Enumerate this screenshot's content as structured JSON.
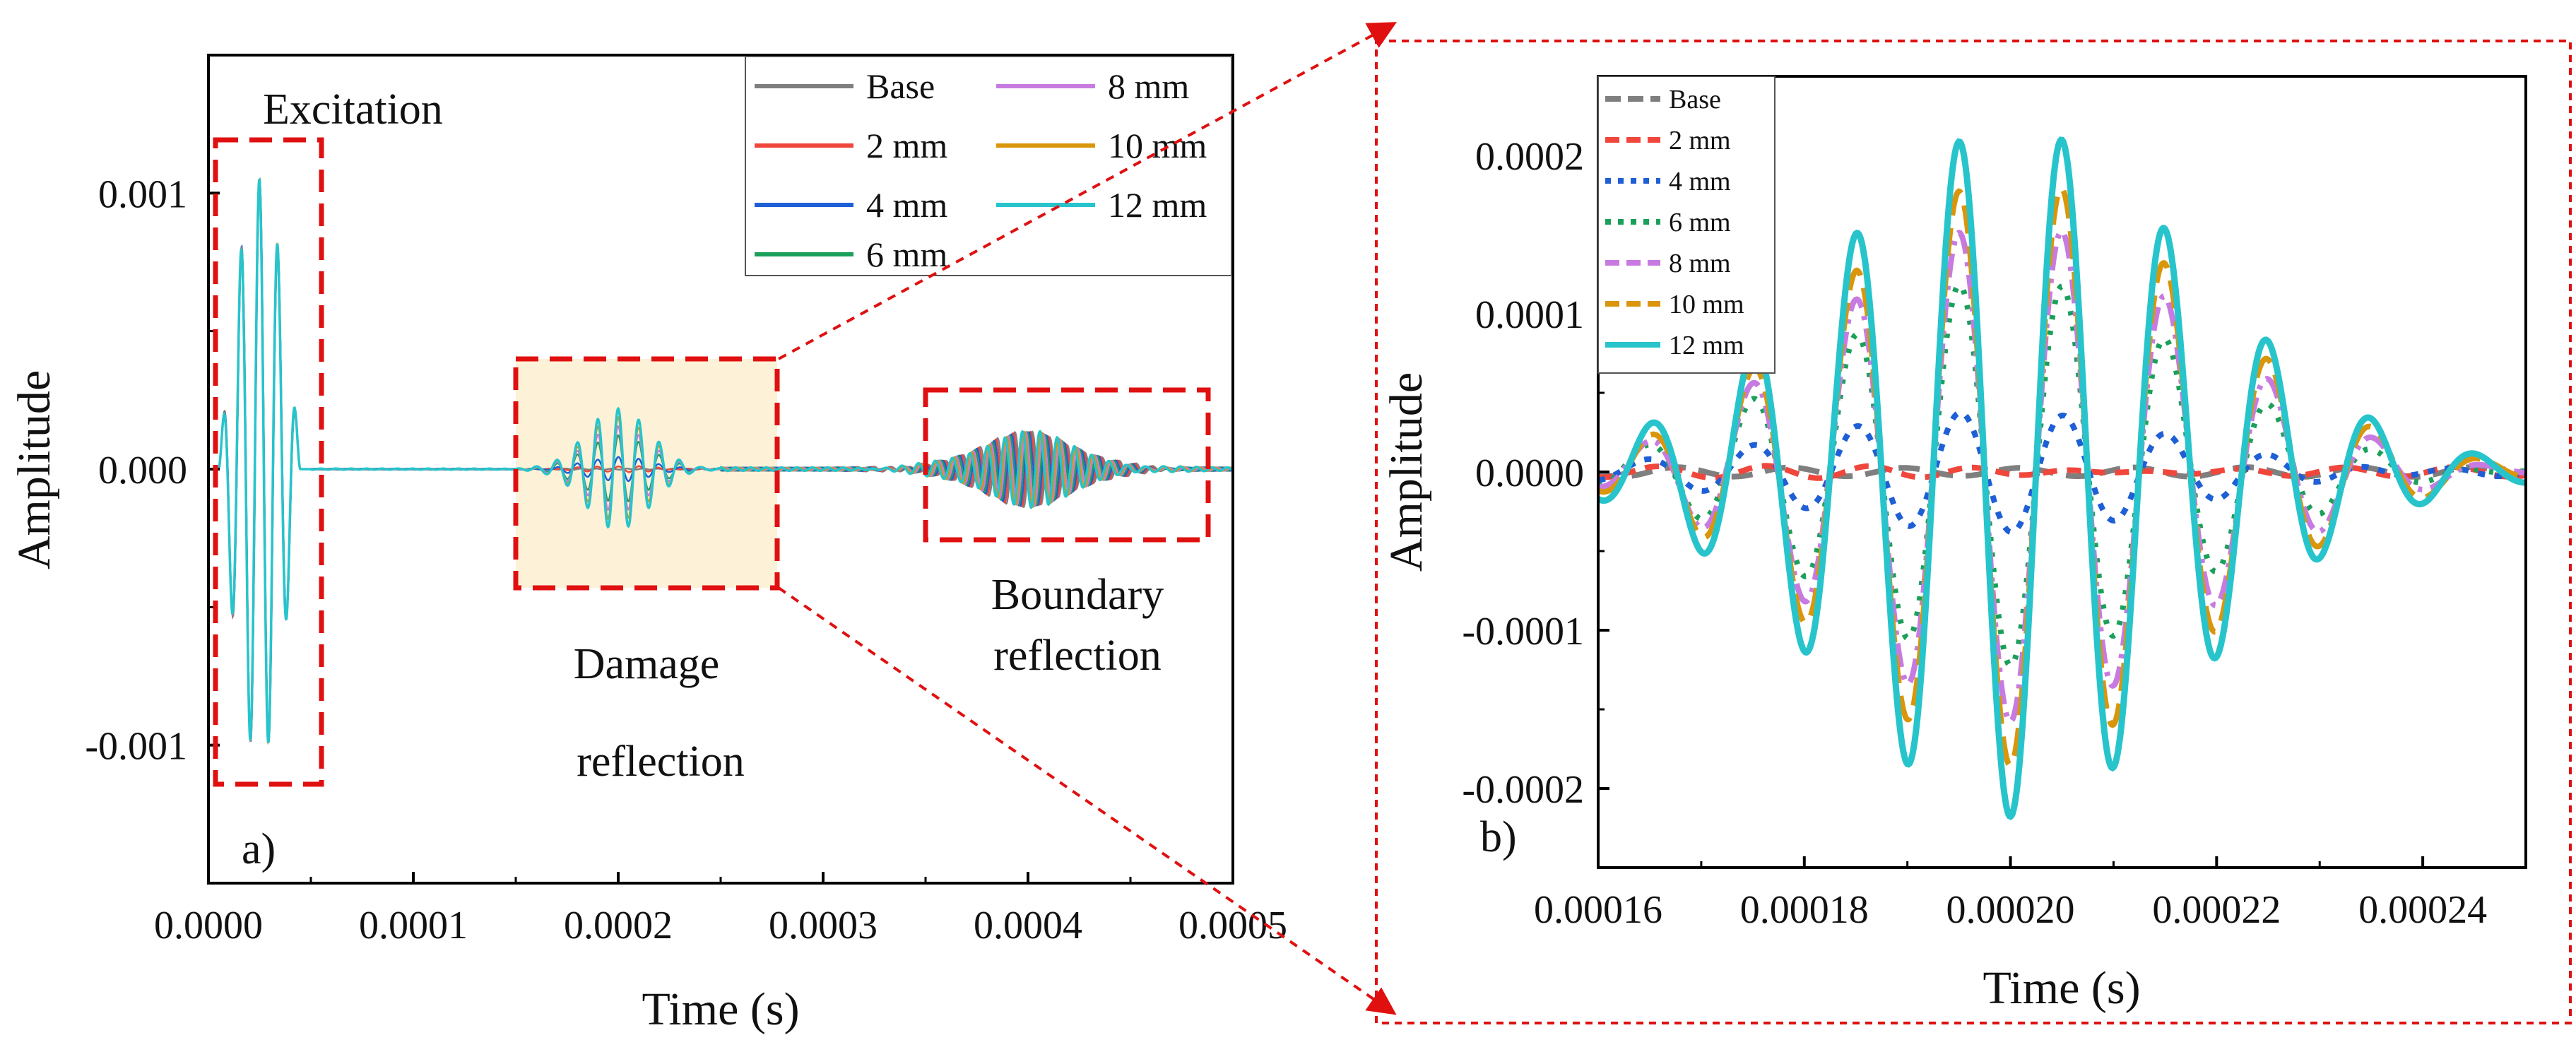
{
  "chart_data": [
    {
      "panel": "a)",
      "type": "line",
      "xlabel": "Time (s)",
      "ylabel": "Amplitude",
      "xlim": [
        0,
        0.0005
      ],
      "ylim": [
        -0.0015,
        0.0015
      ],
      "x_ticks": [
        "0.0000",
        "0.0001",
        "0.0002",
        "0.0003",
        "0.0004",
        "0.0005"
      ],
      "y_ticks": [
        "0.001",
        "0.000",
        "-0.001"
      ],
      "grid": false,
      "legend_position": "top-right",
      "series": [
        {
          "name": "Base",
          "color": "#7f7f7f"
        },
        {
          "name": "2 mm",
          "color": "#f0463c"
        },
        {
          "name": "4 mm",
          "color": "#1f5fd6"
        },
        {
          "name": "6 mm",
          "color": "#1aa05a"
        },
        {
          "name": "8 mm",
          "color": "#c77be0"
        },
        {
          "name": "10 mm",
          "color": "#d9960b"
        },
        {
          "name": "12 mm",
          "color": "#27c4cc"
        }
      ],
      "signal": {
        "excitation": {
          "t_start": 5e-06,
          "t_end": 4.5e-05,
          "amplitude": 0.00105
        },
        "damage_reflection": {
          "center": 0.0002,
          "amplitude_12mm": 0.00022
        },
        "boundary_reflection": {
          "center": 0.0004,
          "amplitude": 0.00014
        }
      },
      "annotations": {
        "excitation": "Excitation",
        "damage_line1": "Damage",
        "damage_line2": "reflection",
        "boundary_line1": "Boundary",
        "boundary_line2": "reflection"
      }
    },
    {
      "panel": "b)",
      "type": "line",
      "xlabel": "Time (s)",
      "ylabel": "Amplitude",
      "xlim": [
        0.00016,
        0.00025
      ],
      "ylim": [
        -0.00025,
        0.00025
      ],
      "x_ticks": [
        "0.00016",
        "0.00018",
        "0.00020",
        "0.00022",
        "0.00024"
      ],
      "y_ticks": [
        "0.0002",
        "0.0001",
        "0.0000",
        "-0.0001",
        "-0.0002"
      ],
      "grid": false,
      "legend_position": "top-left",
      "series": [
        {
          "name": "Base",
          "color": "#7f7f7f",
          "amplitude": 5e-07
        },
        {
          "name": "2 mm",
          "color": "#f0463c",
          "amplitude": 4e-06
        },
        {
          "name": "4 mm",
          "color": "#1f5fd6",
          "amplitude": 3.8e-05
        },
        {
          "name": "6 mm",
          "color": "#1aa05a",
          "amplitude": 0.00012
        },
        {
          "name": "8 mm",
          "color": "#c77be0",
          "amplitude": 0.000155
        },
        {
          "name": "10 mm",
          "color": "#d9960b",
          "amplitude": 0.000185
        },
        {
          "name": "12 mm",
          "color": "#27c4cc",
          "amplitude": 0.00022
        }
      ],
      "wave": {
        "center": 0.0002,
        "period": 1e-05,
        "width": 2.5e-05
      }
    }
  ]
}
